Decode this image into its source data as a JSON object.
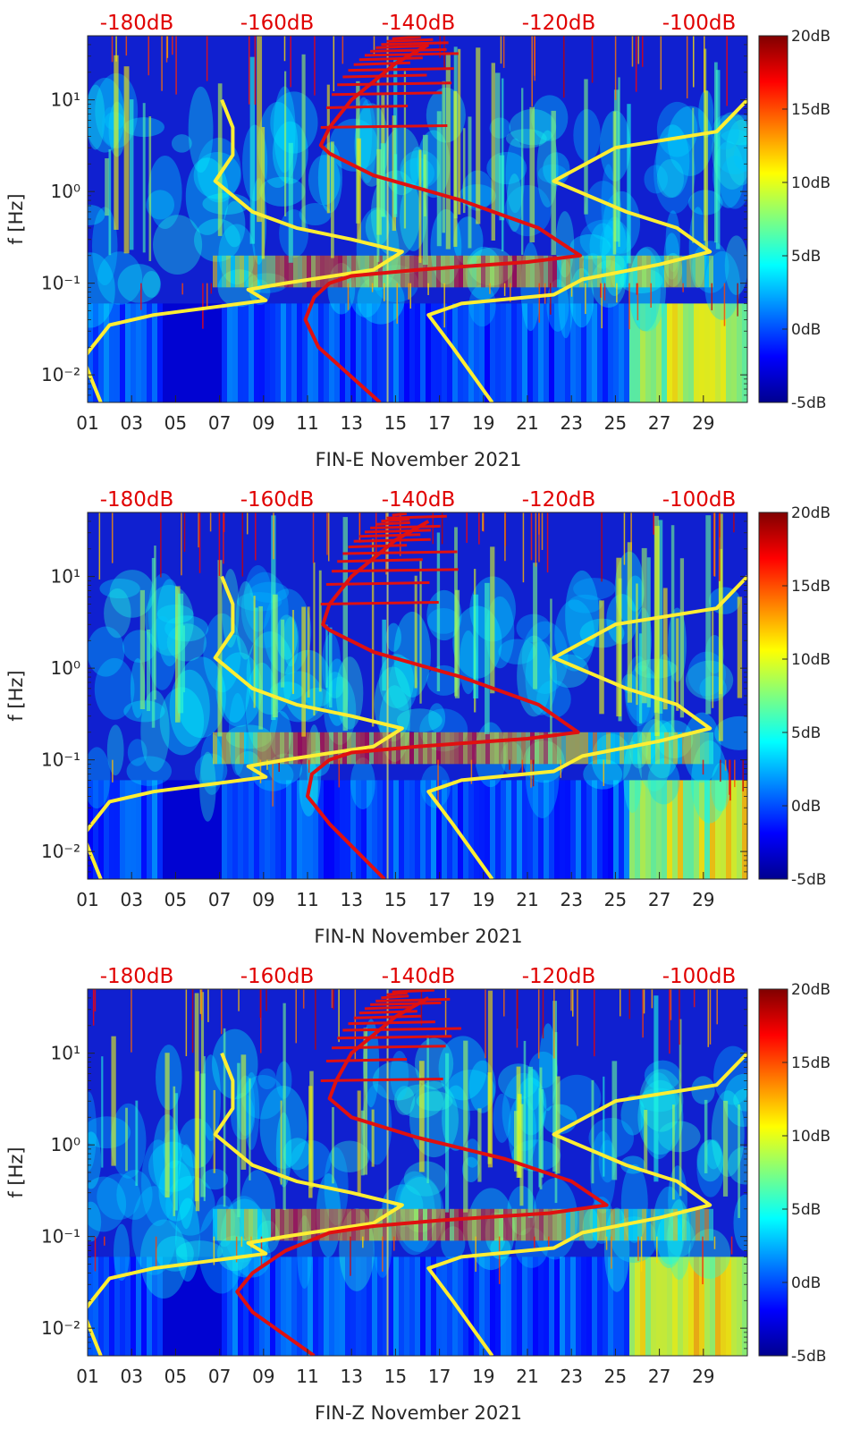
{
  "chart_data": [
    {
      "type": "heatmap",
      "xlabel": "FIN-E November 2021",
      "ylabel": "f [Hz]",
      "x_ticks": [
        "01",
        "03",
        "05",
        "07",
        "09",
        "11",
        "13",
        "15",
        "17",
        "19",
        "21",
        "23",
        "25",
        "27",
        "29"
      ],
      "x_range": [
        1,
        31
      ],
      "y_scale": "log",
      "y_ticks": [
        {
          "value": 10,
          "label": "10¹"
        },
        {
          "value": 1,
          "label": "10⁰"
        },
        {
          "value": 0.1,
          "label": "10⁻¹"
        },
        {
          "value": 0.01,
          "label": "10⁻²"
        }
      ],
      "y_range": [
        0.005,
        50
      ],
      "top_axis_labels": [
        "-180dB",
        "-160dB",
        "-140dB",
        "-120dB",
        "-100dB"
      ],
      "colorbar": {
        "ticks": [
          "20dB",
          "15dB",
          "10dB",
          "5dB",
          "0dB",
          "-5dB"
        ],
        "range": [
          -5,
          20
        ]
      },
      "grid": false,
      "series": [
        {
          "color": "#ffee33",
          "style": "noise-model-low",
          "points": [
            [
              7.1,
              10
            ],
            [
              7.6,
              5
            ],
            [
              7.6,
              2.5
            ],
            [
              6.8,
              1.3
            ],
            [
              8.5,
              0.6
            ],
            [
              10.5,
              0.4
            ],
            [
              13,
              0.3
            ],
            [
              15.3,
              0.22
            ],
            [
              14,
              0.14
            ],
            [
              10,
              0.1
            ],
            [
              8.3,
              0.085
            ],
            [
              9.1,
              0.065
            ],
            [
              8,
              0.06
            ],
            [
              4,
              0.045
            ],
            [
              2,
              0.035
            ],
            [
              1.2,
              0.02
            ],
            [
              0.8,
              0.015
            ],
            [
              1.6,
              0.005
            ]
          ]
        },
        {
          "color": "#ffee33",
          "style": "noise-model-high",
          "points": [
            [
              31,
              10
            ],
            [
              29.6,
              4.5
            ],
            [
              25,
              3
            ],
            [
              22.2,
              1.3
            ],
            [
              25.5,
              0.6
            ],
            [
              27.8,
              0.4
            ],
            [
              29.3,
              0.22
            ],
            [
              27,
              0.16
            ],
            [
              23.5,
              0.11
            ],
            [
              22.2,
              0.075
            ],
            [
              18,
              0.06
            ],
            [
              16.5,
              0.045
            ],
            [
              17.6,
              0.02
            ],
            [
              19.4,
              0.005
            ]
          ]
        },
        {
          "color": "#e01010",
          "style": "model",
          "points": [
            [
              16.5,
              40
            ],
            [
              15,
              25
            ],
            [
              13,
              10
            ],
            [
              12,
              5
            ],
            [
              11.6,
              3.2
            ],
            [
              12,
              2.6
            ],
            [
              14,
              1.5
            ],
            [
              18,
              0.8
            ],
            [
              21.5,
              0.4
            ],
            [
              23.4,
              0.2
            ],
            [
              21,
              0.17
            ],
            [
              16,
              0.14
            ],
            [
              13,
              0.12
            ],
            [
              12,
              0.1
            ],
            [
              11.3,
              0.07
            ],
            [
              10.9,
              0.04
            ],
            [
              11.5,
              0.02
            ],
            [
              14.3,
              0.005
            ]
          ]
        }
      ]
    },
    {
      "type": "heatmap",
      "xlabel": "FIN-N November 2021",
      "ylabel": "f [Hz]",
      "x_ticks": [
        "01",
        "03",
        "05",
        "07",
        "09",
        "11",
        "13",
        "15",
        "17",
        "19",
        "21",
        "23",
        "25",
        "27",
        "29"
      ],
      "x_range": [
        1,
        31
      ],
      "y_scale": "log",
      "y_ticks": [
        {
          "value": 10,
          "label": "10¹"
        },
        {
          "value": 1,
          "label": "10⁰"
        },
        {
          "value": 0.1,
          "label": "10⁻¹"
        },
        {
          "value": 0.01,
          "label": "10⁻²"
        }
      ],
      "y_range": [
        0.005,
        50
      ],
      "top_axis_labels": [
        "-180dB",
        "-160dB",
        "-140dB",
        "-120dB",
        "-100dB"
      ],
      "colorbar": {
        "ticks": [
          "20dB",
          "15dB",
          "10dB",
          "5dB",
          "0dB",
          "-5dB"
        ],
        "range": [
          -5,
          20
        ]
      },
      "grid": false,
      "series": [
        {
          "color": "#ffee33",
          "style": "noise-model-low",
          "points": [
            [
              7.1,
              10
            ],
            [
              7.6,
              5
            ],
            [
              7.6,
              2.5
            ],
            [
              6.8,
              1.3
            ],
            [
              8.5,
              0.6
            ],
            [
              10.5,
              0.4
            ],
            [
              13,
              0.3
            ],
            [
              15.3,
              0.22
            ],
            [
              14,
              0.14
            ],
            [
              10,
              0.1
            ],
            [
              8.3,
              0.085
            ],
            [
              9.1,
              0.065
            ],
            [
              8,
              0.06
            ],
            [
              4,
              0.045
            ],
            [
              2,
              0.035
            ],
            [
              1.2,
              0.02
            ],
            [
              0.8,
              0.015
            ],
            [
              1.6,
              0.005
            ]
          ]
        },
        {
          "color": "#ffee33",
          "style": "noise-model-high",
          "points": [
            [
              31,
              10
            ],
            [
              29.6,
              4.5
            ],
            [
              25,
              3
            ],
            [
              22.2,
              1.3
            ],
            [
              25.5,
              0.6
            ],
            [
              27.8,
              0.4
            ],
            [
              29.3,
              0.22
            ],
            [
              27,
              0.16
            ],
            [
              23.5,
              0.11
            ],
            [
              22.2,
              0.075
            ],
            [
              18,
              0.06
            ],
            [
              16.5,
              0.045
            ],
            [
              17.6,
              0.02
            ],
            [
              19.4,
              0.005
            ]
          ]
        },
        {
          "color": "#e01010",
          "style": "model",
          "points": [
            [
              16.5,
              40
            ],
            [
              15,
              25
            ],
            [
              13,
              10
            ],
            [
              12,
              5
            ],
            [
              11.7,
              3.0
            ],
            [
              12,
              2.6
            ],
            [
              14,
              1.5
            ],
            [
              18,
              0.8
            ],
            [
              21.5,
              0.4
            ],
            [
              23.3,
              0.2
            ],
            [
              21,
              0.17
            ],
            [
              16,
              0.14
            ],
            [
              13,
              0.12
            ],
            [
              12,
              0.1
            ],
            [
              11.2,
              0.07
            ],
            [
              11,
              0.04
            ],
            [
              12,
              0.02
            ],
            [
              14.5,
              0.005
            ]
          ]
        }
      ]
    },
    {
      "type": "heatmap",
      "xlabel": "FIN-Z November 2021",
      "ylabel": "f [Hz]",
      "x_ticks": [
        "01",
        "03",
        "05",
        "07",
        "09",
        "11",
        "13",
        "15",
        "17",
        "19",
        "21",
        "23",
        "25",
        "27",
        "29"
      ],
      "x_range": [
        1,
        31
      ],
      "y_scale": "log",
      "y_ticks": [
        {
          "value": 10,
          "label": "10¹"
        },
        {
          "value": 1,
          "label": "10⁰"
        },
        {
          "value": 0.1,
          "label": "10⁻¹"
        },
        {
          "value": 0.01,
          "label": "10⁻²"
        }
      ],
      "y_range": [
        0.005,
        50
      ],
      "top_axis_labels": [
        "-180dB",
        "-160dB",
        "-140dB",
        "-120dB",
        "-100dB"
      ],
      "colorbar": {
        "ticks": [
          "20dB",
          "15dB",
          "10dB",
          "5dB",
          "0dB",
          "-5dB"
        ],
        "range": [
          -5,
          20
        ]
      },
      "grid": false,
      "series": [
        {
          "color": "#ffee33",
          "style": "noise-model-low",
          "points": [
            [
              7.1,
              10
            ],
            [
              7.6,
              5
            ],
            [
              7.6,
              2.5
            ],
            [
              6.8,
              1.3
            ],
            [
              8.5,
              0.6
            ],
            [
              10.5,
              0.4
            ],
            [
              13,
              0.3
            ],
            [
              15.3,
              0.22
            ],
            [
              14,
              0.14
            ],
            [
              10,
              0.1
            ],
            [
              8.3,
              0.085
            ],
            [
              9.1,
              0.065
            ],
            [
              8,
              0.06
            ],
            [
              4,
              0.045
            ],
            [
              2,
              0.035
            ],
            [
              1.2,
              0.02
            ],
            [
              0.8,
              0.015
            ],
            [
              1.6,
              0.005
            ]
          ]
        },
        {
          "color": "#ffee33",
          "style": "noise-model-high",
          "points": [
            [
              31,
              10
            ],
            [
              29.6,
              4.5
            ],
            [
              25,
              3
            ],
            [
              22.2,
              1.3
            ],
            [
              25.5,
              0.6
            ],
            [
              27.8,
              0.4
            ],
            [
              29.3,
              0.22
            ],
            [
              27,
              0.16
            ],
            [
              23.5,
              0.11
            ],
            [
              22.2,
              0.075
            ],
            [
              18,
              0.06
            ],
            [
              16.5,
              0.045
            ],
            [
              17.6,
              0.02
            ],
            [
              19.4,
              0.005
            ]
          ]
        },
        {
          "color": "#e01010",
          "style": "model",
          "points": [
            [
              16.5,
              40
            ],
            [
              15,
              25
            ],
            [
              13,
              10
            ],
            [
              12.3,
              5
            ],
            [
              12,
              3.2
            ],
            [
              13,
              2.0
            ],
            [
              16,
              1.2
            ],
            [
              20,
              0.7
            ],
            [
              23,
              0.4
            ],
            [
              24.6,
              0.22
            ],
            [
              22,
              0.18
            ],
            [
              17,
              0.15
            ],
            [
              14,
              0.13
            ],
            [
              12,
              0.11
            ],
            [
              10,
              0.07
            ],
            [
              8.5,
              0.04
            ],
            [
              7.8,
              0.025
            ],
            [
              8.5,
              0.015
            ],
            [
              11.3,
              0.005
            ]
          ]
        }
      ]
    }
  ],
  "colors": {
    "red_line": "#e01010",
    "yellow_line": "#ffee33",
    "top_labels": "#e00000"
  }
}
